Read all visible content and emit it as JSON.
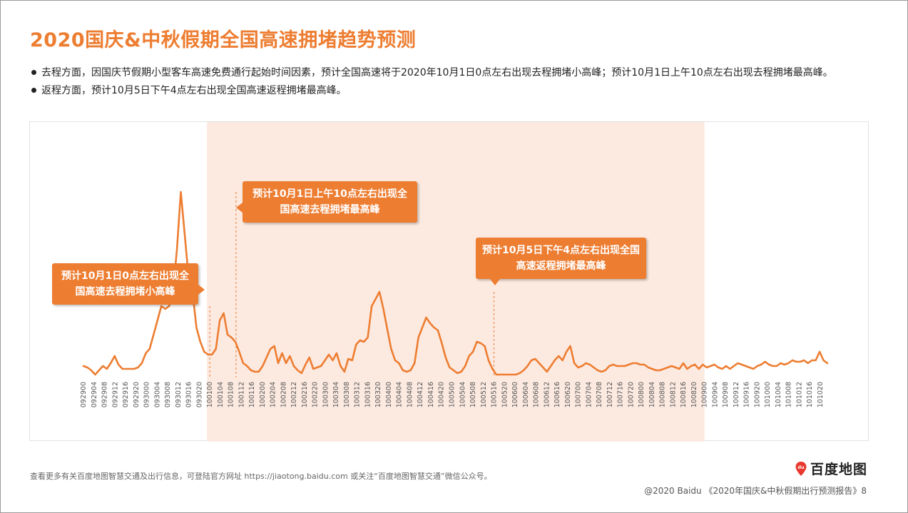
{
  "page": {
    "title": "2020国庆&中秋假期全国高速拥堵趋势预测",
    "bullets": [
      "去程方面，因国庆节假期小型客车高速免费通行起始时间因素，预计全国高速将于2020年10月1日0点左右出现去程拥堵小高峰；预计10月1日上午10点左右出现去程拥堵最高峰。",
      "返程方面，预计10月5日下午4点左右出现全国高速返程拥堵最高峰。"
    ],
    "footer_note": "查看更多有关百度地图智慧交通及出行信息，可登陆官方网址 https://jiaotong.baidu.com 或关注“百度地图智慧交通”微信公众号。",
    "copyright": "@2020 Baidu 《2020年国庆&中秋假期出行预测报告》8",
    "logo_text": "百度地图",
    "logo_badge": "du"
  },
  "callouts": {
    "peak_small": "预计10月1日0点左右出现全国高速去程拥堵小高峰",
    "peak_outbound": "预计10月1日上午10点左右出现全国高速去程拥堵最高峰",
    "peak_return": "预计10月5日下午4点左右出现全国高速返程拥堵最高峰"
  },
  "colors": {
    "accent": "#ED7D31",
    "band": "#FCEAE1",
    "logo_red": "#E8382F"
  },
  "chart_data": {
    "type": "line",
    "title": "",
    "xlabel": "",
    "ylabel": "",
    "grid": false,
    "legend": "none",
    "highlight_range": [
      "100100",
      "100900"
    ],
    "x_ticks": [
      "092900",
      "092904",
      "092908",
      "092912",
      "092916",
      "092920",
      "093000",
      "093004",
      "093008",
      "093012",
      "093016",
      "093020",
      "100100",
      "100104",
      "100108",
      "100112",
      "100116",
      "100200",
      "100204",
      "100208",
      "100212",
      "100216",
      "100220",
      "100300",
      "100304",
      "100308",
      "100312",
      "100316",
      "100320",
      "100400",
      "100404",
      "100408",
      "100412",
      "100416",
      "100420",
      "100500",
      "100504",
      "100508",
      "100512",
      "100516",
      "100520",
      "100600",
      "100604",
      "100608",
      "100612",
      "100616",
      "100620",
      "100700",
      "100704",
      "100708",
      "100712",
      "100716",
      "100720",
      "100800",
      "100804",
      "100808",
      "100812",
      "100816",
      "100820",
      "100900",
      "100904",
      "100908",
      "100912",
      "100916",
      "100920",
      "101000",
      "101004",
      "101008",
      "101012",
      "101016",
      "101020"
    ],
    "values": [
      8,
      7,
      5,
      2,
      5,
      8,
      6,
      10,
      15,
      9,
      6,
      6,
      6,
      6,
      7,
      10,
      17,
      20,
      30,
      40,
      50,
      48,
      50,
      60,
      90,
      130,
      100,
      70,
      60,
      35,
      25,
      18,
      16,
      16,
      20,
      40,
      45,
      30,
      28,
      25,
      18,
      10,
      8,
      5,
      4,
      4,
      8,
      14,
      20,
      22,
      10,
      17,
      10,
      15,
      8,
      5,
      3,
      9,
      14,
      6,
      7,
      8,
      12,
      16,
      12,
      17,
      8,
      4,
      13,
      12,
      23,
      26,
      25,
      28,
      50,
      55,
      60,
      48,
      34,
      20,
      12,
      10,
      5,
      4,
      5,
      10,
      28,
      35,
      42,
      38,
      35,
      33,
      24,
      14,
      7,
      5,
      3,
      4,
      8,
      15,
      18,
      25,
      24,
      22,
      12,
      6,
      2,
      2,
      2,
      2,
      2,
      2,
      3,
      5,
      8,
      12,
      13,
      10,
      7,
      4,
      8,
      12,
      15,
      12,
      18,
      22,
      10,
      7,
      8,
      10,
      9,
      7,
      5,
      4,
      5,
      8,
      9,
      8,
      8,
      8,
      9,
      10,
      10,
      9,
      9,
      7,
      6,
      5,
      5,
      6,
      7,
      8,
      7,
      6,
      10,
      6,
      8,
      9,
      6,
      9,
      7,
      8,
      9,
      7,
      6,
      8,
      6,
      8,
      10,
      9,
      8,
      7,
      6,
      8,
      9,
      11,
      9,
      8,
      8,
      10,
      9,
      10,
      12,
      11,
      11,
      12,
      10,
      12,
      12,
      18,
      12,
      10
    ],
    "annotated_points": [
      {
        "x": "100100",
        "value": 50
      },
      {
        "x": "100110",
        "value": 130
      },
      {
        "x": "100516",
        "value": 60
      }
    ]
  }
}
